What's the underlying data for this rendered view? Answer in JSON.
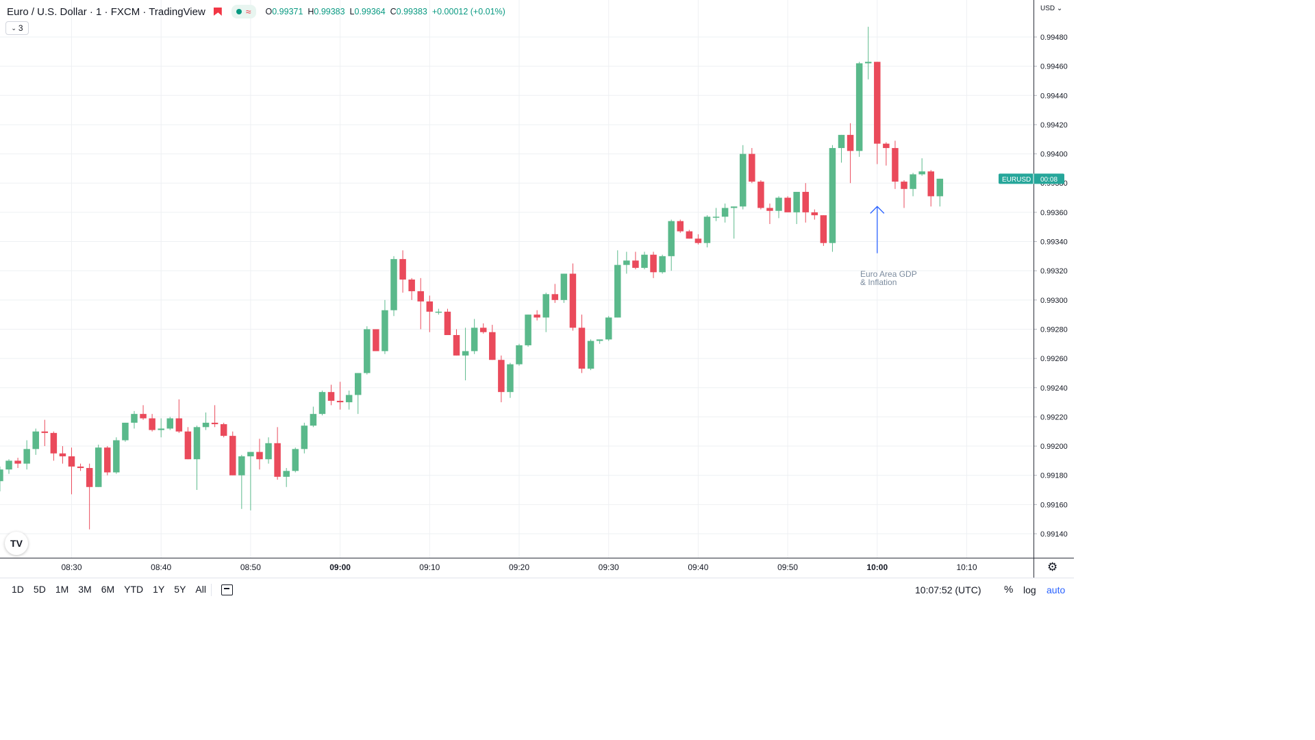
{
  "header": {
    "symbol_title": "Euro / U.S. Dollar · 1 · FXCM · TradingView",
    "ohlc": {
      "o_label": "O",
      "o": "0.99371",
      "h_label": "H",
      "h": "0.99383",
      "l_label": "L",
      "l": "0.99364",
      "c_label": "C",
      "c": "0.99383",
      "change": "+0.00012 (+0.01%)"
    },
    "indicator_count": "3",
    "currency": "USD"
  },
  "price_label": {
    "symbol": "EURUSD",
    "countdown": "00:08",
    "value": 0.99383,
    "color": "#26a69a"
  },
  "annotation": {
    "line1": "Euro Area GDP",
    "line2": "& Inflation",
    "time": "10:00",
    "arrow_from": 0.99332,
    "arrow_to": 0.99364
  },
  "bottom_bar": {
    "ranges": [
      "1D",
      "5D",
      "1M",
      "3M",
      "6M",
      "YTD",
      "1Y",
      "5Y",
      "All"
    ],
    "clock": "10:07:52 (UTC)",
    "percent": "%",
    "log": "log",
    "auto": "auto"
  },
  "colors": {
    "up": "#5ab98b",
    "down": "#ea4a5b",
    "grid": "#eef0f3",
    "accent": "#2962ff"
  },
  "chart_data": {
    "type": "candlestick",
    "title": "Euro / U.S. Dollar · 1 · FXCM · TradingView",
    "timeframe": "1 minute",
    "ylim": [
      0.9913,
      0.9949
    ],
    "y_ticks": [
      0.9914,
      0.9916,
      0.9918,
      0.992,
      0.9922,
      0.9924,
      0.9926,
      0.9928,
      0.993,
      0.9932,
      0.9934,
      0.9936,
      0.9938,
      0.994,
      0.9942,
      0.9944,
      0.9946,
      0.9948
    ],
    "x_ticks": [
      {
        "label": "08:30",
        "minute": 510,
        "bold": false
      },
      {
        "label": "08:40",
        "minute": 520,
        "bold": false
      },
      {
        "label": "08:50",
        "minute": 530,
        "bold": false
      },
      {
        "label": "09:00",
        "minute": 540,
        "bold": true
      },
      {
        "label": "09:10",
        "minute": 550,
        "bold": false
      },
      {
        "label": "09:20",
        "minute": 560,
        "bold": false
      },
      {
        "label": "09:30",
        "minute": 570,
        "bold": false
      },
      {
        "label": "09:40",
        "minute": 580,
        "bold": false
      },
      {
        "label": "09:50",
        "minute": 590,
        "bold": false
      },
      {
        "label": "10:00",
        "minute": 600,
        "bold": true
      },
      {
        "label": "10:10",
        "minute": 610,
        "bold": false
      }
    ],
    "xlim_minutes": [
      502,
      618.6
    ],
    "candles": [
      {
        "t": "08:22",
        "o": 0.99176,
        "h": 0.99186,
        "l": 0.99169,
        "c": 0.99184
      },
      {
        "t": "08:23",
        "o": 0.99184,
        "h": 0.99191,
        "l": 0.99181,
        "c": 0.9919
      },
      {
        "t": "08:24",
        "o": 0.9919,
        "h": 0.99192,
        "l": 0.99185,
        "c": 0.99188
      },
      {
        "t": "08:25",
        "o": 0.99188,
        "h": 0.99204,
        "l": 0.99184,
        "c": 0.99198
      },
      {
        "t": "08:26",
        "o": 0.99198,
        "h": 0.99212,
        "l": 0.99194,
        "c": 0.9921
      },
      {
        "t": "08:27",
        "o": 0.9921,
        "h": 0.99218,
        "l": 0.992,
        "c": 0.99209
      },
      {
        "t": "08:28",
        "o": 0.99209,
        "h": 0.9921,
        "l": 0.9919,
        "c": 0.99195
      },
      {
        "t": "08:29",
        "o": 0.99195,
        "h": 0.992,
        "l": 0.99188,
        "c": 0.99193
      },
      {
        "t": "08:30",
        "o": 0.99193,
        "h": 0.99199,
        "l": 0.99167,
        "c": 0.99186
      },
      {
        "t": "08:31",
        "o": 0.99186,
        "h": 0.99188,
        "l": 0.99183,
        "c": 0.99185
      },
      {
        "t": "08:32",
        "o": 0.99185,
        "h": 0.99188,
        "l": 0.99143,
        "c": 0.99172
      },
      {
        "t": "08:33",
        "o": 0.99172,
        "h": 0.99201,
        "l": 0.99172,
        "c": 0.99199
      },
      {
        "t": "08:34",
        "o": 0.99199,
        "h": 0.992,
        "l": 0.9918,
        "c": 0.99182
      },
      {
        "t": "08:35",
        "o": 0.99182,
        "h": 0.99206,
        "l": 0.99181,
        "c": 0.99204
      },
      {
        "t": "08:36",
        "o": 0.99204,
        "h": 0.99216,
        "l": 0.99203,
        "c": 0.99216
      },
      {
        "t": "08:37",
        "o": 0.99216,
        "h": 0.99224,
        "l": 0.99212,
        "c": 0.99222
      },
      {
        "t": "08:38",
        "o": 0.99222,
        "h": 0.99228,
        "l": 0.99218,
        "c": 0.99219
      },
      {
        "t": "08:39",
        "o": 0.99219,
        "h": 0.99222,
        "l": 0.9921,
        "c": 0.99211
      },
      {
        "t": "08:40",
        "o": 0.99211,
        "h": 0.99219,
        "l": 0.99206,
        "c": 0.99212
      },
      {
        "t": "08:41",
        "o": 0.99212,
        "h": 0.9922,
        "l": 0.99211,
        "c": 0.99219
      },
      {
        "t": "08:42",
        "o": 0.99219,
        "h": 0.99232,
        "l": 0.99209,
        "c": 0.9921
      },
      {
        "t": "08:43",
        "o": 0.9921,
        "h": 0.99213,
        "l": 0.99191,
        "c": 0.99191
      },
      {
        "t": "08:44",
        "o": 0.99191,
        "h": 0.99214,
        "l": 0.9917,
        "c": 0.99213
      },
      {
        "t": "08:45",
        "o": 0.99213,
        "h": 0.99223,
        "l": 0.99211,
        "c": 0.99216
      },
      {
        "t": "08:46",
        "o": 0.99216,
        "h": 0.99228,
        "l": 0.99213,
        "c": 0.99215
      },
      {
        "t": "08:47",
        "o": 0.99215,
        "h": 0.99216,
        "l": 0.99206,
        "c": 0.99207
      },
      {
        "t": "08:48",
        "o": 0.99207,
        "h": 0.9921,
        "l": 0.9918,
        "c": 0.9918
      },
      {
        "t": "08:49",
        "o": 0.9918,
        "h": 0.99194,
        "l": 0.99157,
        "c": 0.99193
      },
      {
        "t": "08:50",
        "o": 0.99193,
        "h": 0.99196,
        "l": 0.99156,
        "c": 0.99196
      },
      {
        "t": "08:51",
        "o": 0.99196,
        "h": 0.99205,
        "l": 0.99184,
        "c": 0.99191
      },
      {
        "t": "08:52",
        "o": 0.99191,
        "h": 0.99206,
        "l": 0.99188,
        "c": 0.99202
      },
      {
        "t": "08:53",
        "o": 0.99202,
        "h": 0.99213,
        "l": 0.99177,
        "c": 0.99179
      },
      {
        "t": "08:54",
        "o": 0.99179,
        "h": 0.99185,
        "l": 0.99172,
        "c": 0.99183
      },
      {
        "t": "08:55",
        "o": 0.99183,
        "h": 0.99199,
        "l": 0.99182,
        "c": 0.99198
      },
      {
        "t": "08:56",
        "o": 0.99198,
        "h": 0.99216,
        "l": 0.99195,
        "c": 0.99214
      },
      {
        "t": "08:57",
        "o": 0.99214,
        "h": 0.99227,
        "l": 0.99213,
        "c": 0.99222
      },
      {
        "t": "08:58",
        "o": 0.99222,
        "h": 0.99238,
        "l": 0.99221,
        "c": 0.99237
      },
      {
        "t": "08:59",
        "o": 0.99237,
        "h": 0.99242,
        "l": 0.99228,
        "c": 0.99231
      },
      {
        "t": "09:00",
        "o": 0.99231,
        "h": 0.99244,
        "l": 0.99225,
        "c": 0.9923
      },
      {
        "t": "09:01",
        "o": 0.9923,
        "h": 0.99238,
        "l": 0.99225,
        "c": 0.99235
      },
      {
        "t": "09:02",
        "o": 0.99235,
        "h": 0.9925,
        "l": 0.99222,
        "c": 0.9925
      },
      {
        "t": "09:03",
        "o": 0.9925,
        "h": 0.99282,
        "l": 0.99249,
        "c": 0.9928
      },
      {
        "t": "09:04",
        "o": 0.9928,
        "h": 0.9928,
        "l": 0.99265,
        "c": 0.99265
      },
      {
        "t": "09:05",
        "o": 0.99265,
        "h": 0.993,
        "l": 0.99263,
        "c": 0.99293
      },
      {
        "t": "09:06",
        "o": 0.99293,
        "h": 0.9933,
        "l": 0.99289,
        "c": 0.99328
      },
      {
        "t": "09:07",
        "o": 0.99328,
        "h": 0.99334,
        "l": 0.99305,
        "c": 0.99314
      },
      {
        "t": "09:08",
        "o": 0.99314,
        "h": 0.99315,
        "l": 0.993,
        "c": 0.99306
      },
      {
        "t": "09:09",
        "o": 0.99306,
        "h": 0.99315,
        "l": 0.9928,
        "c": 0.99299
      },
      {
        "t": "09:10",
        "o": 0.99299,
        "h": 0.99303,
        "l": 0.99278,
        "c": 0.99292
      },
      {
        "t": "09:11",
        "o": 0.99292,
        "h": 0.99294,
        "l": 0.9929,
        "c": 0.99292
      },
      {
        "t": "09:12",
        "o": 0.99292,
        "h": 0.99294,
        "l": 0.99276,
        "c": 0.99276
      },
      {
        "t": "09:13",
        "o": 0.99276,
        "h": 0.9928,
        "l": 0.99262,
        "c": 0.99262
      },
      {
        "t": "09:14",
        "o": 0.99262,
        "h": 0.99281,
        "l": 0.99245,
        "c": 0.99265
      },
      {
        "t": "09:15",
        "o": 0.99265,
        "h": 0.99287,
        "l": 0.99263,
        "c": 0.99281
      },
      {
        "t": "09:16",
        "o": 0.99281,
        "h": 0.99284,
        "l": 0.99277,
        "c": 0.99278
      },
      {
        "t": "09:17",
        "o": 0.99278,
        "h": 0.99283,
        "l": 0.99259,
        "c": 0.99259
      },
      {
        "t": "09:18",
        "o": 0.99259,
        "h": 0.99262,
        "l": 0.9923,
        "c": 0.99237
      },
      {
        "t": "09:19",
        "o": 0.99237,
        "h": 0.99257,
        "l": 0.99233,
        "c": 0.99256
      },
      {
        "t": "09:20",
        "o": 0.99256,
        "h": 0.9927,
        "l": 0.99255,
        "c": 0.99269
      },
      {
        "t": "09:21",
        "o": 0.99269,
        "h": 0.9929,
        "l": 0.99268,
        "c": 0.9929
      },
      {
        "t": "09:22",
        "o": 0.9929,
        "h": 0.99293,
        "l": 0.99286,
        "c": 0.99288
      },
      {
        "t": "09:23",
        "o": 0.99288,
        "h": 0.99305,
        "l": 0.99278,
        "c": 0.99304
      },
      {
        "t": "09:24",
        "o": 0.99304,
        "h": 0.99311,
        "l": 0.99298,
        "c": 0.993
      },
      {
        "t": "09:25",
        "o": 0.993,
        "h": 0.99318,
        "l": 0.99298,
        "c": 0.99318
      },
      {
        "t": "09:26",
        "o": 0.99318,
        "h": 0.99325,
        "l": 0.99279,
        "c": 0.99281
      },
      {
        "t": "09:27",
        "o": 0.99281,
        "h": 0.9929,
        "l": 0.9925,
        "c": 0.99253
      },
      {
        "t": "09:28",
        "o": 0.99253,
        "h": 0.99273,
        "l": 0.99252,
        "c": 0.99272
      },
      {
        "t": "09:29",
        "o": 0.99272,
        "h": 0.99273,
        "l": 0.9927,
        "c": 0.99273
      },
      {
        "t": "09:30",
        "o": 0.99273,
        "h": 0.99289,
        "l": 0.99272,
        "c": 0.99288
      },
      {
        "t": "09:31",
        "o": 0.99288,
        "h": 0.99334,
        "l": 0.99288,
        "c": 0.99324
      },
      {
        "t": "09:32",
        "o": 0.99324,
        "h": 0.99333,
        "l": 0.99318,
        "c": 0.99327
      },
      {
        "t": "09:33",
        "o": 0.99327,
        "h": 0.99333,
        "l": 0.99321,
        "c": 0.99322
      },
      {
        "t": "09:34",
        "o": 0.99322,
        "h": 0.99333,
        "l": 0.99321,
        "c": 0.99331
      },
      {
        "t": "09:35",
        "o": 0.99331,
        "h": 0.99333,
        "l": 0.99315,
        "c": 0.99319
      },
      {
        "t": "09:36",
        "o": 0.99319,
        "h": 0.99331,
        "l": 0.99318,
        "c": 0.9933
      },
      {
        "t": "09:37",
        "o": 0.9933,
        "h": 0.99355,
        "l": 0.9932,
        "c": 0.99354
      },
      {
        "t": "09:38",
        "o": 0.99354,
        "h": 0.99355,
        "l": 0.99346,
        "c": 0.99347
      },
      {
        "t": "09:39",
        "o": 0.99347,
        "h": 0.99348,
        "l": 0.99342,
        "c": 0.99342
      },
      {
        "t": "09:40",
        "o": 0.99342,
        "h": 0.99345,
        "l": 0.99338,
        "c": 0.99339
      },
      {
        "t": "09:41",
        "o": 0.99339,
        "h": 0.99358,
        "l": 0.99336,
        "c": 0.99357
      },
      {
        "t": "09:42",
        "o": 0.99357,
        "h": 0.99363,
        "l": 0.99354,
        "c": 0.99357
      },
      {
        "t": "09:43",
        "o": 0.99357,
        "h": 0.99366,
        "l": 0.99353,
        "c": 0.99363
      },
      {
        "t": "09:44",
        "o": 0.99363,
        "h": 0.99364,
        "l": 0.99342,
        "c": 0.99364
      },
      {
        "t": "09:45",
        "o": 0.99364,
        "h": 0.99406,
        "l": 0.99362,
        "c": 0.994
      },
      {
        "t": "09:46",
        "o": 0.994,
        "h": 0.99404,
        "l": 0.9938,
        "c": 0.99381
      },
      {
        "t": "09:47",
        "o": 0.99381,
        "h": 0.99382,
        "l": 0.99362,
        "c": 0.99363
      },
      {
        "t": "09:48",
        "o": 0.99363,
        "h": 0.99366,
        "l": 0.99352,
        "c": 0.99361
      },
      {
        "t": "09:49",
        "o": 0.99361,
        "h": 0.99371,
        "l": 0.99356,
        "c": 0.9937
      },
      {
        "t": "09:50",
        "o": 0.9937,
        "h": 0.99371,
        "l": 0.9936,
        "c": 0.9936
      },
      {
        "t": "09:51",
        "o": 0.9936,
        "h": 0.99374,
        "l": 0.99352,
        "c": 0.99374
      },
      {
        "t": "09:52",
        "o": 0.99374,
        "h": 0.9938,
        "l": 0.99353,
        "c": 0.9936
      },
      {
        "t": "09:53",
        "o": 0.9936,
        "h": 0.99362,
        "l": 0.99355,
        "c": 0.99358
      },
      {
        "t": "09:54",
        "o": 0.99358,
        "h": 0.99358,
        "l": 0.99337,
        "c": 0.99339
      },
      {
        "t": "09:55",
        "o": 0.99339,
        "h": 0.99406,
        "l": 0.99333,
        "c": 0.99404
      },
      {
        "t": "09:56",
        "o": 0.99404,
        "h": 0.99413,
        "l": 0.99394,
        "c": 0.99413
      },
      {
        "t": "09:57",
        "o": 0.99413,
        "h": 0.99421,
        "l": 0.9938,
        "c": 0.99402
      },
      {
        "t": "09:58",
        "o": 0.99402,
        "h": 0.99463,
        "l": 0.99398,
        "c": 0.99462
      },
      {
        "t": "09:59",
        "o": 0.99462,
        "h": 0.99487,
        "l": 0.99451,
        "c": 0.99463
      },
      {
        "t": "10:00",
        "o": 0.99463,
        "h": 0.99463,
        "l": 0.99393,
        "c": 0.99407
      },
      {
        "t": "10:01",
        "o": 0.99407,
        "h": 0.99408,
        "l": 0.99392,
        "c": 0.99404
      },
      {
        "t": "10:02",
        "o": 0.99404,
        "h": 0.99409,
        "l": 0.99376,
        "c": 0.99381
      },
      {
        "t": "10:03",
        "o": 0.99381,
        "h": 0.99382,
        "l": 0.99363,
        "c": 0.99376
      },
      {
        "t": "10:04",
        "o": 0.99376,
        "h": 0.99387,
        "l": 0.99371,
        "c": 0.99386
      },
      {
        "t": "10:05",
        "o": 0.99386,
        "h": 0.99397,
        "l": 0.99385,
        "c": 0.99388
      },
      {
        "t": "10:06",
        "o": 0.99388,
        "h": 0.99389,
        "l": 0.99364,
        "c": 0.99371
      },
      {
        "t": "10:07",
        "o": 0.99371,
        "h": 0.99383,
        "l": 0.99364,
        "c": 0.99383
      }
    ]
  }
}
